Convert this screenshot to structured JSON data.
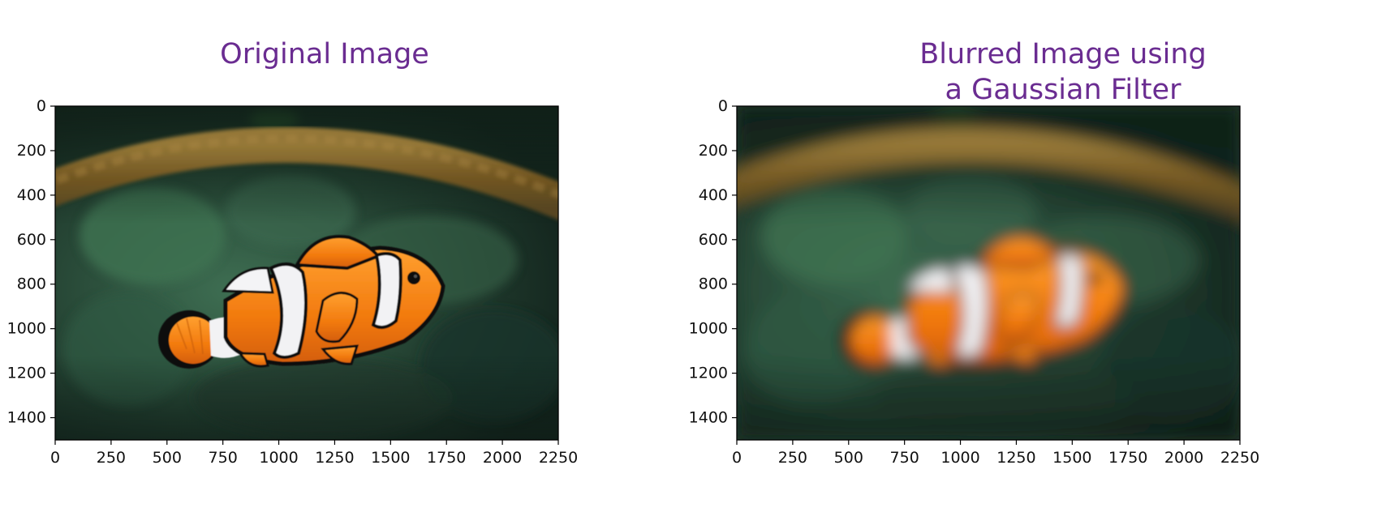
{
  "chart_data": [
    {
      "type": "image",
      "title": "Original Image",
      "x_ticks": [
        0,
        250,
        500,
        750,
        1000,
        1250,
        1500,
        1750,
        2000,
        2250
      ],
      "y_ticks": [
        0,
        200,
        400,
        600,
        800,
        1000,
        1200,
        1400
      ],
      "xlim": [
        0,
        2250
      ],
      "ylim": [
        1500,
        0
      ],
      "xlabel": "",
      "ylabel": "",
      "blur": 0,
      "content": "clownfish"
    },
    {
      "type": "image",
      "title": "Blurred Image using\na Gaussian Filter",
      "x_ticks": [
        0,
        250,
        500,
        750,
        1000,
        1250,
        1500,
        1750,
        2000,
        2250
      ],
      "y_ticks": [
        0,
        200,
        400,
        600,
        800,
        1000,
        1200,
        1400
      ],
      "xlim": [
        0,
        2250
      ],
      "ylim": [
        1500,
        0
      ],
      "xlabel": "",
      "ylabel": "",
      "blur": 1,
      "content": "clownfish"
    }
  ],
  "colors": {
    "title": "#6a2c91",
    "water_dark": "#14251f",
    "water_mid": "#2e5a44",
    "rope": "#8a6a2c",
    "fish_orange": "#f07a10",
    "stripe_white": "#f2f2f4",
    "stripe_black": "#111111"
  }
}
